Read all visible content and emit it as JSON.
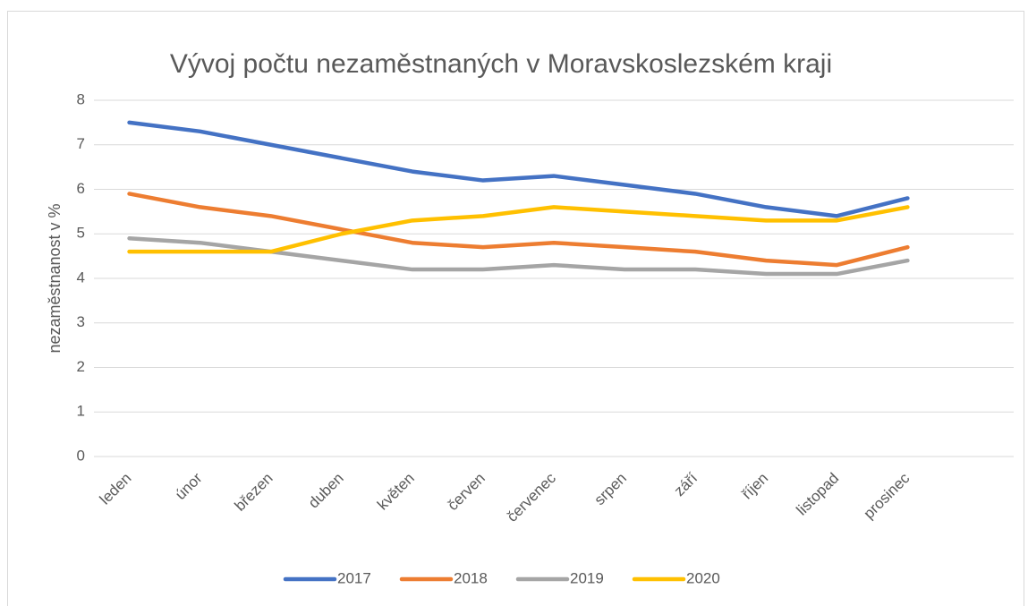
{
  "chart_data": {
    "type": "line",
    "title": "Vývoj počtu nezaměstnaných v Moravskoslezském kraji",
    "y_label": "nezaměstnanost v %",
    "categories": [
      "leden",
      "únor",
      "březen",
      "duben",
      "květen",
      "červen",
      "červenec",
      "srpen",
      "září",
      "říjen",
      "listopad",
      "prosinec",
      null
    ],
    "series": [
      {
        "name": "2017",
        "color": "#4472c4",
        "values": [
          7.5,
          7.3,
          7.0,
          6.7,
          6.4,
          6.2,
          6.3,
          6.1,
          5.9,
          5.6,
          5.4,
          5.8,
          null
        ]
      },
      {
        "name": "2018",
        "color": "#ed7d31",
        "values": [
          5.9,
          5.6,
          5.4,
          5.1,
          4.8,
          4.7,
          4.8,
          4.7,
          4.6,
          4.4,
          4.3,
          4.7,
          null
        ]
      },
      {
        "name": "2019",
        "color": "#a5a5a5",
        "values": [
          4.9,
          4.8,
          4.6,
          4.4,
          4.2,
          4.2,
          4.3,
          4.2,
          4.2,
          4.1,
          4.1,
          4.4,
          null
        ]
      },
      {
        "name": "2020",
        "color": "#ffc000",
        "values": [
          4.6,
          4.6,
          4.6,
          5.0,
          5.3,
          5.4,
          5.6,
          5.5,
          5.4,
          5.3,
          5.3,
          5.6,
          null
        ]
      }
    ],
    "ylim": [
      0,
      8
    ],
    "yticks": [
      0,
      1,
      2,
      3,
      4,
      5,
      6,
      7,
      8
    ],
    "grid": true,
    "legend": "bottom"
  }
}
